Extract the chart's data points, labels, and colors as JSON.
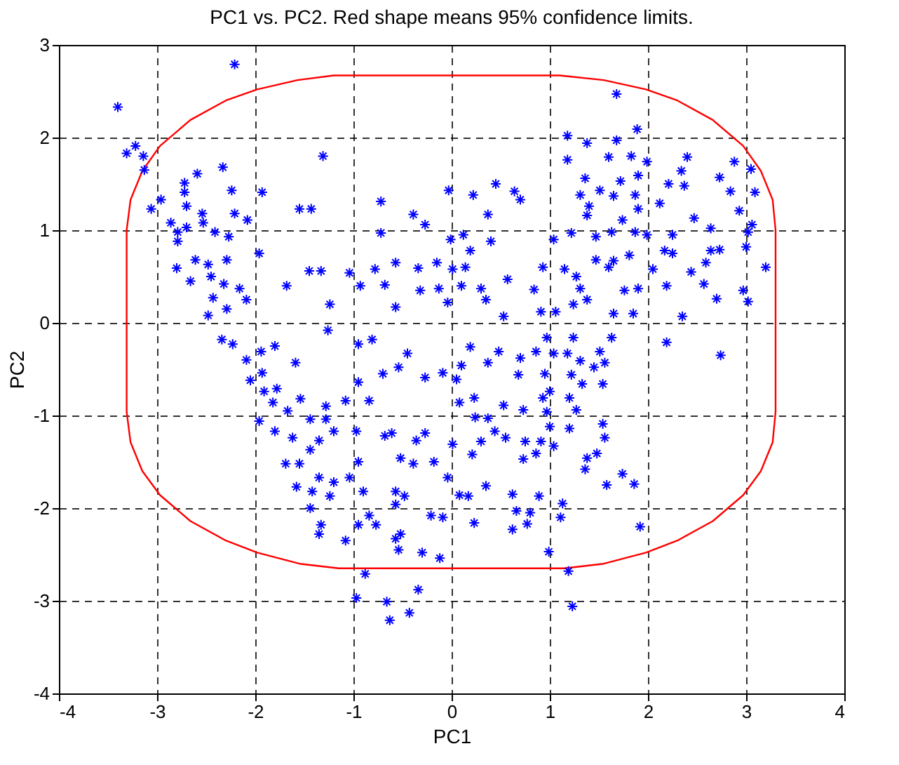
{
  "chart_data": {
    "type": "scatter",
    "title": "PC1 vs. PC2. Red shape means 95% confidence limits.",
    "xlabel": "PC1",
    "ylabel": "PC2",
    "xlim": [
      -4,
      4
    ],
    "ylim": [
      -4,
      3
    ],
    "xticks": [
      -4,
      -3,
      -2,
      -1,
      0,
      1,
      2,
      3,
      4
    ],
    "yticks": [
      -4,
      -3,
      -2,
      -1,
      0,
      1,
      2,
      3
    ],
    "grid": true,
    "series": [
      {
        "color": "#0000ff",
        "marker": "cross",
        "x": [
          -2.21,
          -3.4,
          -3.31,
          -3.22,
          -3.14,
          -3.13,
          -3.06,
          -2.96,
          -2.72,
          -2.72,
          -2.59,
          -2.33,
          -2.24,
          -2.7,
          -2.54,
          -2.21,
          -2.08,
          -1.93,
          -2.86,
          -2.79,
          -2.7,
          -2.79,
          -2.41,
          -2.27,
          -2.53,
          -1.96,
          -2.8,
          -2.61,
          -2.48,
          -2.45,
          -2.66,
          -2.32,
          -2.29,
          -2.16,
          -2.43,
          -2.09,
          -2.29,
          -2.48,
          -1.68,
          -1.55,
          -1.43,
          -1.31,
          -1.45,
          -1.33,
          -1.24,
          -1.04,
          -0.93,
          -0.72,
          -0.72,
          -0.78,
          -0.57,
          -0.68,
          -0.39,
          -0.27,
          -0.34,
          -0.15,
          -0.32,
          -0.57,
          -0.03,
          -0.01,
          -0.13,
          1.68,
          1.18,
          1.38,
          1.68,
          1.89,
          1.18,
          1.6,
          1.83,
          1.99,
          2.4,
          2.34,
          2.73,
          2.88,
          3.05,
          3.09,
          2.84,
          2.21,
          2.37,
          1.36,
          1.9,
          1.72,
          1.51,
          1.31,
          1.65,
          1.87,
          2.12,
          1.4,
          1.9,
          1.74,
          1.38,
          2.93,
          2.47,
          2.64,
          3.02,
          3.06,
          0.22,
          0.45,
          0.64,
          0.7,
          0.37,
          0.12,
          0.4,
          1.04,
          1.22,
          1.47,
          1.63,
          1.87,
          1.99,
          2.25,
          2.64,
          2.73,
          3.0,
          3.2,
          2.59,
          2.44,
          2.57,
          2.7,
          2.97,
          3.02,
          2.17,
          2.25,
          2.05,
          2.19,
          1.15,
          1.27,
          1.47,
          1.6,
          1.65,
          1.81,
          1.9,
          1.76,
          1.65,
          1.85,
          1.31,
          1.38,
          1.24,
          0.93,
          0.84,
          1.06,
          0.14,
          0.01,
          0.1,
          0.3,
          0.35,
          0.57,
          0.19,
          -0.04,
          0.53,
          0.91,
          2.35,
          -2.34,
          -2.23,
          -2.09,
          -1.94,
          -1.8,
          -1.59,
          -1.26,
          -2.05,
          -1.93,
          -1.91,
          -1.78,
          -1.82,
          -1.67,
          -1.54,
          -1.28,
          -1.08,
          -0.95,
          -0.81,
          -0.95,
          -0.7,
          -0.54,
          -0.84,
          -0.45,
          -0.27,
          -0.09,
          -1.96,
          -1.8,
          -1.62,
          -1.44,
          -1.28,
          -1.2,
          -1.44,
          -1.69,
          -1.55,
          -1.35,
          -1.35,
          -1.58,
          -1.42,
          -1.2,
          -1.24,
          -1.04,
          -0.97,
          -0.95,
          -0.9,
          -0.68,
          -0.61,
          -0.52,
          -0.39,
          -0.36,
          -0.27,
          -0.18,
          -0.57,
          -0.48,
          -0.57,
          -1.44,
          -1.33,
          -1.35,
          -1.08,
          -0.95,
          -0.84,
          -0.77,
          -0.57,
          -0.52,
          -0.54,
          -0.3,
          -0.21,
          -0.09,
          -0.12,
          -0.88,
          -0.97,
          -0.66,
          -0.63,
          -0.43,
          -0.34,
          0.97,
          1.24,
          1.63,
          2.19,
          2.74,
          0.19,
          0.48,
          0.7,
          0.37,
          0.1,
          0.05,
          0.86,
          1.04,
          1.18,
          1.31,
          1.51,
          1.56,
          1.45,
          1.22,
          0.95,
          0.68,
          1.54,
          1.33,
          1.0,
          1.2,
          0.93,
          0.73,
          0.53,
          0.23,
          0.08,
          0.24,
          0.37,
          0.97,
          1.27,
          1.54,
          1.56,
          1.2,
          1.0,
          0.44,
          0.55,
          0.3,
          0.01,
          0.75,
          0.91,
          1.04,
          0.86,
          0.21,
          0.73,
          1.38,
          1.48,
          1.36,
          -0.04,
          0.35,
          1.58,
          1.74,
          1.86,
          0.08,
          0.17,
          0.62,
          0.89,
          1.13,
          0.66,
          0.8,
          1.11,
          0.77,
          0.62,
          0.23,
          1.92,
          0.99,
          1.19,
          1.23
        ],
        "values": [
          2.79,
          2.33,
          1.83,
          1.91,
          1.8,
          1.65,
          1.23,
          1.33,
          1.51,
          1.41,
          1.61,
          1.68,
          1.43,
          1.26,
          1.18,
          1.18,
          1.11,
          1.41,
          1.08,
          0.98,
          1.03,
          0.88,
          0.98,
          0.93,
          1.08,
          0.75,
          0.59,
          0.68,
          0.63,
          0.5,
          0.45,
          0.42,
          0.68,
          0.37,
          0.27,
          0.25,
          0.15,
          0.08,
          0.4,
          1.23,
          1.23,
          1.8,
          0.56,
          0.56,
          0.2,
          0.54,
          0.4,
          1.31,
          0.97,
          0.58,
          0.65,
          0.41,
          1.17,
          1.06,
          0.59,
          0.65,
          0.35,
          0.17,
          1.43,
          0.9,
          0.37,
          2.47,
          2.02,
          1.94,
          1.97,
          2.09,
          1.76,
          1.79,
          1.8,
          1.74,
          1.79,
          1.64,
          1.57,
          1.74,
          1.66,
          1.41,
          1.42,
          1.5,
          1.48,
          1.56,
          1.59,
          1.53,
          1.43,
          1.38,
          1.37,
          1.38,
          1.29,
          1.26,
          1.23,
          1.11,
          1.16,
          1.21,
          1.13,
          1.02,
          0.98,
          1.06,
          1.38,
          1.5,
          1.42,
          1.33,
          1.17,
          0.95,
          0.88,
          0.9,
          0.97,
          0.93,
          0.98,
          0.98,
          0.95,
          0.95,
          0.78,
          0.79,
          0.82,
          0.6,
          0.65,
          0.55,
          0.42,
          0.26,
          0.35,
          0.23,
          0.78,
          0.75,
          0.58,
          0.4,
          0.58,
          0.5,
          0.68,
          0.6,
          0.67,
          0.73,
          0.37,
          0.35,
          0.1,
          0.1,
          0.37,
          0.25,
          0.2,
          0.6,
          0.36,
          0.12,
          0.6,
          0.58,
          0.4,
          0.37,
          0.25,
          0.47,
          0.78,
          0.22,
          0.07,
          0.12,
          0.07,
          -0.18,
          -0.23,
          -0.4,
          -0.31,
          -0.25,
          -0.43,
          -0.08,
          -0.62,
          -0.54,
          -0.74,
          -0.71,
          -0.86,
          -0.95,
          -0.82,
          -0.9,
          -0.84,
          -0.23,
          -0.18,
          -0.64,
          -0.55,
          -0.48,
          -0.84,
          -0.33,
          -0.59,
          -0.54,
          -1.06,
          -1.17,
          -1.24,
          -1.04,
          -1.04,
          -1.17,
          -1.37,
          -1.52,
          -1.52,
          -1.27,
          -1.67,
          -1.77,
          -1.82,
          -1.72,
          -1.87,
          -1.67,
          -1.17,
          -1.5,
          -1.82,
          -1.22,
          -1.19,
          -1.46,
          -1.52,
          -1.27,
          -1.19,
          -1.5,
          -1.82,
          -1.87,
          -1.96,
          -2.0,
          -2.18,
          -2.28,
          -2.35,
          -2.18,
          -2.08,
          -2.18,
          -2.33,
          -2.28,
          -2.45,
          -2.48,
          -2.08,
          -2.1,
          -2.54,
          -2.71,
          -2.97,
          -3.01,
          -3.21,
          -3.13,
          -2.88,
          -0.16,
          -0.16,
          -0.16,
          -0.21,
          -0.35,
          -0.26,
          -0.31,
          -0.38,
          -0.43,
          -0.46,
          -0.61,
          -0.31,
          -0.33,
          -0.33,
          -0.41,
          -0.31,
          -0.43,
          -0.48,
          -0.56,
          -0.55,
          -0.56,
          -0.66,
          -0.66,
          -0.74,
          -0.81,
          -0.81,
          -0.94,
          -0.89,
          -0.81,
          -0.86,
          -1.02,
          -1.03,
          -0.96,
          -0.94,
          -1.09,
          -1.24,
          -1.14,
          -1.12,
          -1.17,
          -1.24,
          -1.28,
          -1.31,
          -1.28,
          -1.28,
          -1.33,
          -1.41,
          -1.42,
          -1.47,
          -1.46,
          -1.41,
          -1.58,
          -1.67,
          -1.76,
          -1.75,
          -1.63,
          -1.74,
          -1.86,
          -1.87,
          -1.85,
          -1.87,
          -1.95,
          -2.03,
          -2.05,
          -2.1,
          -2.17,
          -2.23,
          -2.16,
          -2.2,
          -2.47,
          -2.68,
          -3.06
        ]
      }
    ]
  }
}
